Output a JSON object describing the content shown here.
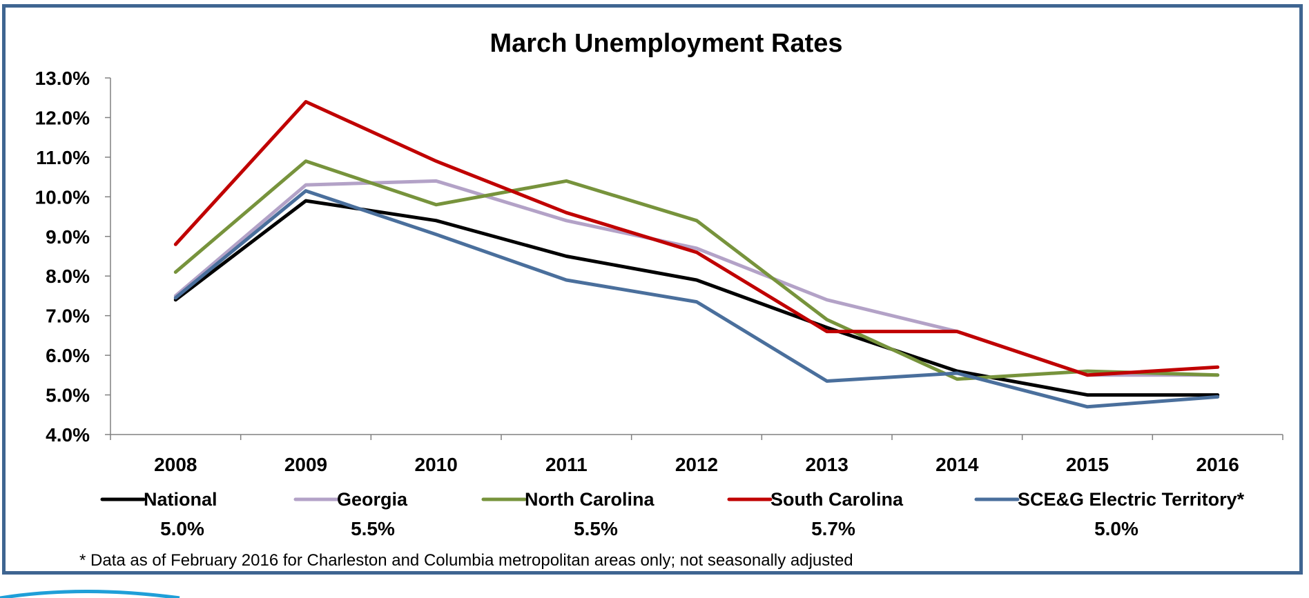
{
  "chart_data": {
    "type": "line",
    "title": "March Unemployment Rates",
    "xlabel": "",
    "ylabel": "",
    "x": [
      "2008",
      "2009",
      "2010",
      "2011",
      "2012",
      "2013",
      "2014",
      "2015",
      "2016"
    ],
    "ylim": [
      4.0,
      13.0
    ],
    "yticks": [
      "4.0%",
      "5.0%",
      "6.0%",
      "7.0%",
      "8.0%",
      "9.0%",
      "10.0%",
      "11.0%",
      "12.0%",
      "13.0%"
    ],
    "grid": false,
    "legend_position": "bottom",
    "series": [
      {
        "name": "National",
        "color": "#000000",
        "latest": "5.0%",
        "values": [
          7.4,
          9.9,
          9.4,
          8.5,
          7.9,
          6.7,
          5.6,
          5.0,
          5.0
        ]
      },
      {
        "name": "Georgia",
        "color": "#b3a2c7",
        "latest": "5.5%",
        "values": [
          7.5,
          10.3,
          10.4,
          9.4,
          8.7,
          7.4,
          6.6,
          5.5,
          5.5
        ]
      },
      {
        "name": "North Carolina",
        "color": "#77933c",
        "latest": "5.5%",
        "values": [
          8.1,
          10.9,
          9.8,
          10.4,
          9.4,
          6.9,
          5.4,
          5.6,
          5.5
        ]
      },
      {
        "name": "South Carolina",
        "color": "#c00000",
        "latest": "5.7%",
        "values": [
          8.8,
          12.4,
          10.9,
          9.6,
          8.6,
          6.6,
          6.6,
          5.5,
          5.7
        ]
      },
      {
        "name": "SCE&G Electric Territory*",
        "color": "#4a6f9c",
        "latest": "5.0%",
        "values": [
          7.45,
          10.15,
          9.05,
          7.9,
          7.35,
          5.35,
          5.55,
          4.7,
          4.95
        ]
      }
    ],
    "footnote": "* Data as of February 2016 for Charleston and Columbia metropolitan areas only; not seasonally adjusted"
  },
  "colors": {
    "frame_border": "#3f6591",
    "swoosh": "#1f9fd8"
  }
}
